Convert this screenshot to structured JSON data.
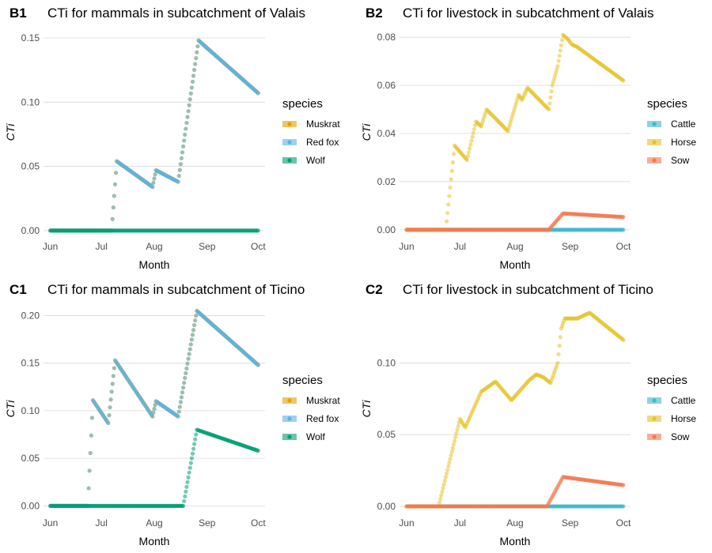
{
  "chart_data": [
    {
      "panel": "B1",
      "type": "scatter",
      "title": "CTi for mammals in subcatchment of Valais",
      "xlabel": "Month",
      "ylabel": "CTi",
      "x_ticks": [
        "Jun",
        "Jul",
        "Aug",
        "Sep",
        "Oct"
      ],
      "xlim": [
        "2021-06-01",
        "2021-10-01"
      ],
      "y_ticks": [
        "0.00",
        "0.05",
        "0.10",
        "0.15"
      ],
      "ylim": [
        -0.005,
        0.158
      ],
      "grid": true,
      "legend_title": "species",
      "legend_position": "right",
      "series": [
        {
          "name": "Muskrat",
          "color": "#E69F00",
          "points": [
            [
              "2021-06-01",
              0
            ],
            [
              "2021-07-07",
              0
            ],
            [
              "2021-07-10",
              0.054
            ],
            [
              "2021-07-31",
              0.034
            ],
            [
              "2021-08-02",
              0.047
            ],
            [
              "2021-08-15",
              0.038
            ],
            [
              "2021-08-27",
              0.148
            ],
            [
              "2021-10-01",
              0.107
            ]
          ]
        },
        {
          "name": "Red fox",
          "color": "#56B4E9",
          "points": [
            [
              "2021-06-01",
              0
            ],
            [
              "2021-07-07",
              0
            ],
            [
              "2021-07-10",
              0.054
            ],
            [
              "2021-07-31",
              0.034
            ],
            [
              "2021-08-02",
              0.047
            ],
            [
              "2021-08-15",
              0.038
            ],
            [
              "2021-08-27",
              0.148
            ],
            [
              "2021-10-01",
              0.107
            ]
          ]
        },
        {
          "name": "Wolf",
          "color": "#009E73",
          "points": [
            [
              "2021-06-01",
              0
            ],
            [
              "2021-10-01",
              0
            ]
          ]
        }
      ]
    },
    {
      "panel": "B2",
      "type": "scatter",
      "title": "CTi for livestock in subcatchment of Valais",
      "xlabel": "Month",
      "ylabel": "CTi",
      "x_ticks": [
        "Jun",
        "Jul",
        "Aug",
        "Sep",
        "Oct"
      ],
      "xlim": [
        "2021-06-01",
        "2021-10-01"
      ],
      "y_ticks": [
        "0.00",
        "0.02",
        "0.04",
        "0.06",
        "0.08"
      ],
      "ylim": [
        -0.003,
        0.084
      ],
      "grid": true,
      "legend_title": "species",
      "legend_position": "right",
      "series": [
        {
          "name": "Cattle",
          "color": "#3CB8CC",
          "points": [
            [
              "2021-06-01",
              0
            ],
            [
              "2021-10-01",
              0
            ]
          ]
        },
        {
          "name": "Horse",
          "color": "#E6C229",
          "points": [
            [
              "2021-06-01",
              0
            ],
            [
              "2021-06-23",
              0
            ],
            [
              "2021-06-28",
              0.035
            ],
            [
              "2021-07-05",
              0.029
            ],
            [
              "2021-07-10",
              0.045
            ],
            [
              "2021-07-13",
              0.043
            ],
            [
              "2021-07-16",
              0.05
            ],
            [
              "2021-07-28",
              0.041
            ],
            [
              "2021-08-03",
              0.056
            ],
            [
              "2021-08-05",
              0.054
            ],
            [
              "2021-08-08",
              0.059
            ],
            [
              "2021-08-20",
              0.05
            ],
            [
              "2021-08-22",
              0.06
            ],
            [
              "2021-08-25",
              0.068
            ],
            [
              "2021-08-28",
              0.081
            ],
            [
              "2021-08-31",
              0.079
            ],
            [
              "2021-09-02",
              0.077
            ],
            [
              "2021-09-05",
              0.076
            ],
            [
              "2021-10-01",
              0.062
            ]
          ]
        },
        {
          "name": "Sow",
          "color": "#F4784E",
          "points": [
            [
              "2021-06-01",
              0
            ],
            [
              "2021-08-20",
              0
            ],
            [
              "2021-08-28",
              0.0068
            ],
            [
              "2021-10-01",
              0.0053
            ]
          ]
        }
      ]
    },
    {
      "panel": "C1",
      "type": "scatter",
      "title": "CTi for mammals in subcatchment of Ticino",
      "xlabel": "Month",
      "ylabel": "CTi",
      "x_ticks": [
        "Jun",
        "Jul",
        "Aug",
        "Sep",
        "Oct"
      ],
      "xlim": [
        "2021-06-01",
        "2021-10-01"
      ],
      "y_ticks": [
        "0.00",
        "0.05",
        "0.10",
        "0.15",
        "0.20"
      ],
      "ylim": [
        -0.008,
        0.212
      ],
      "grid": true,
      "legend_title": "species",
      "legend_position": "right",
      "series": [
        {
          "name": "Muskrat",
          "color": "#E69F00",
          "points": [
            [
              "2021-06-01",
              0
            ],
            [
              "2021-06-23",
              0
            ],
            [
              "2021-06-26",
              0.111
            ],
            [
              "2021-07-05",
              0.087
            ],
            [
              "2021-07-09",
              0.153
            ],
            [
              "2021-07-31",
              0.094
            ],
            [
              "2021-08-02",
              0.11
            ],
            [
              "2021-08-15",
              0.094
            ],
            [
              "2021-08-26",
              0.205
            ],
            [
              "2021-10-01",
              0.148
            ]
          ]
        },
        {
          "name": "Red fox",
          "color": "#56B4E9",
          "points": [
            [
              "2021-06-01",
              0
            ],
            [
              "2021-06-23",
              0
            ],
            [
              "2021-06-26",
              0.111
            ],
            [
              "2021-07-05",
              0.087
            ],
            [
              "2021-07-09",
              0.153
            ],
            [
              "2021-07-31",
              0.094
            ],
            [
              "2021-08-02",
              0.11
            ],
            [
              "2021-08-15",
              0.094
            ],
            [
              "2021-08-26",
              0.205
            ],
            [
              "2021-10-01",
              0.148
            ]
          ]
        },
        {
          "name": "Wolf",
          "color": "#009E73",
          "points": [
            [
              "2021-06-01",
              0
            ],
            [
              "2021-08-18",
              0
            ],
            [
              "2021-08-26",
              0.08
            ],
            [
              "2021-10-01",
              0.058
            ]
          ]
        }
      ]
    },
    {
      "panel": "C2",
      "type": "scatter",
      "title": "CTi for livestock in subcatchment of Ticino",
      "xlabel": "Month",
      "ylabel": "CTi",
      "x_ticks": [
        "Jun",
        "Jul",
        "Aug",
        "Sep",
        "Oct"
      ],
      "xlim": [
        "2021-06-01",
        "2021-10-01"
      ],
      "y_ticks": [
        "0.00",
        "0.05",
        "0.10"
      ],
      "ylim": [
        -0.005,
        0.141
      ],
      "grid": true,
      "legend_title": "species",
      "legend_position": "right",
      "series": [
        {
          "name": "Cattle",
          "color": "#3CB8CC",
          "points": [
            [
              "2021-06-01",
              0
            ],
            [
              "2021-10-01",
              0
            ]
          ]
        },
        {
          "name": "Horse",
          "color": "#E6C229",
          "points": [
            [
              "2021-06-01",
              0
            ],
            [
              "2021-06-19",
              0
            ],
            [
              "2021-07-01",
              0.061
            ],
            [
              "2021-07-04",
              0.055
            ],
            [
              "2021-07-13",
              0.08
            ],
            [
              "2021-07-21",
              0.087
            ],
            [
              "2021-07-30",
              0.074
            ],
            [
              "2021-08-09",
              0.088
            ],
            [
              "2021-08-13",
              0.092
            ],
            [
              "2021-08-17",
              0.09
            ],
            [
              "2021-08-21",
              0.086
            ],
            [
              "2021-08-25",
              0.1
            ],
            [
              "2021-08-27",
              0.124
            ],
            [
              "2021-08-29",
              0.131
            ],
            [
              "2021-09-05",
              0.131
            ],
            [
              "2021-09-12",
              0.135
            ],
            [
              "2021-10-01",
              0.116
            ]
          ]
        },
        {
          "name": "Sow",
          "color": "#F4784E",
          "points": [
            [
              "2021-06-01",
              0
            ],
            [
              "2021-08-19",
              0
            ],
            [
              "2021-08-28",
              0.0205
            ],
            [
              "2021-10-01",
              0.0148
            ]
          ]
        }
      ]
    }
  ]
}
